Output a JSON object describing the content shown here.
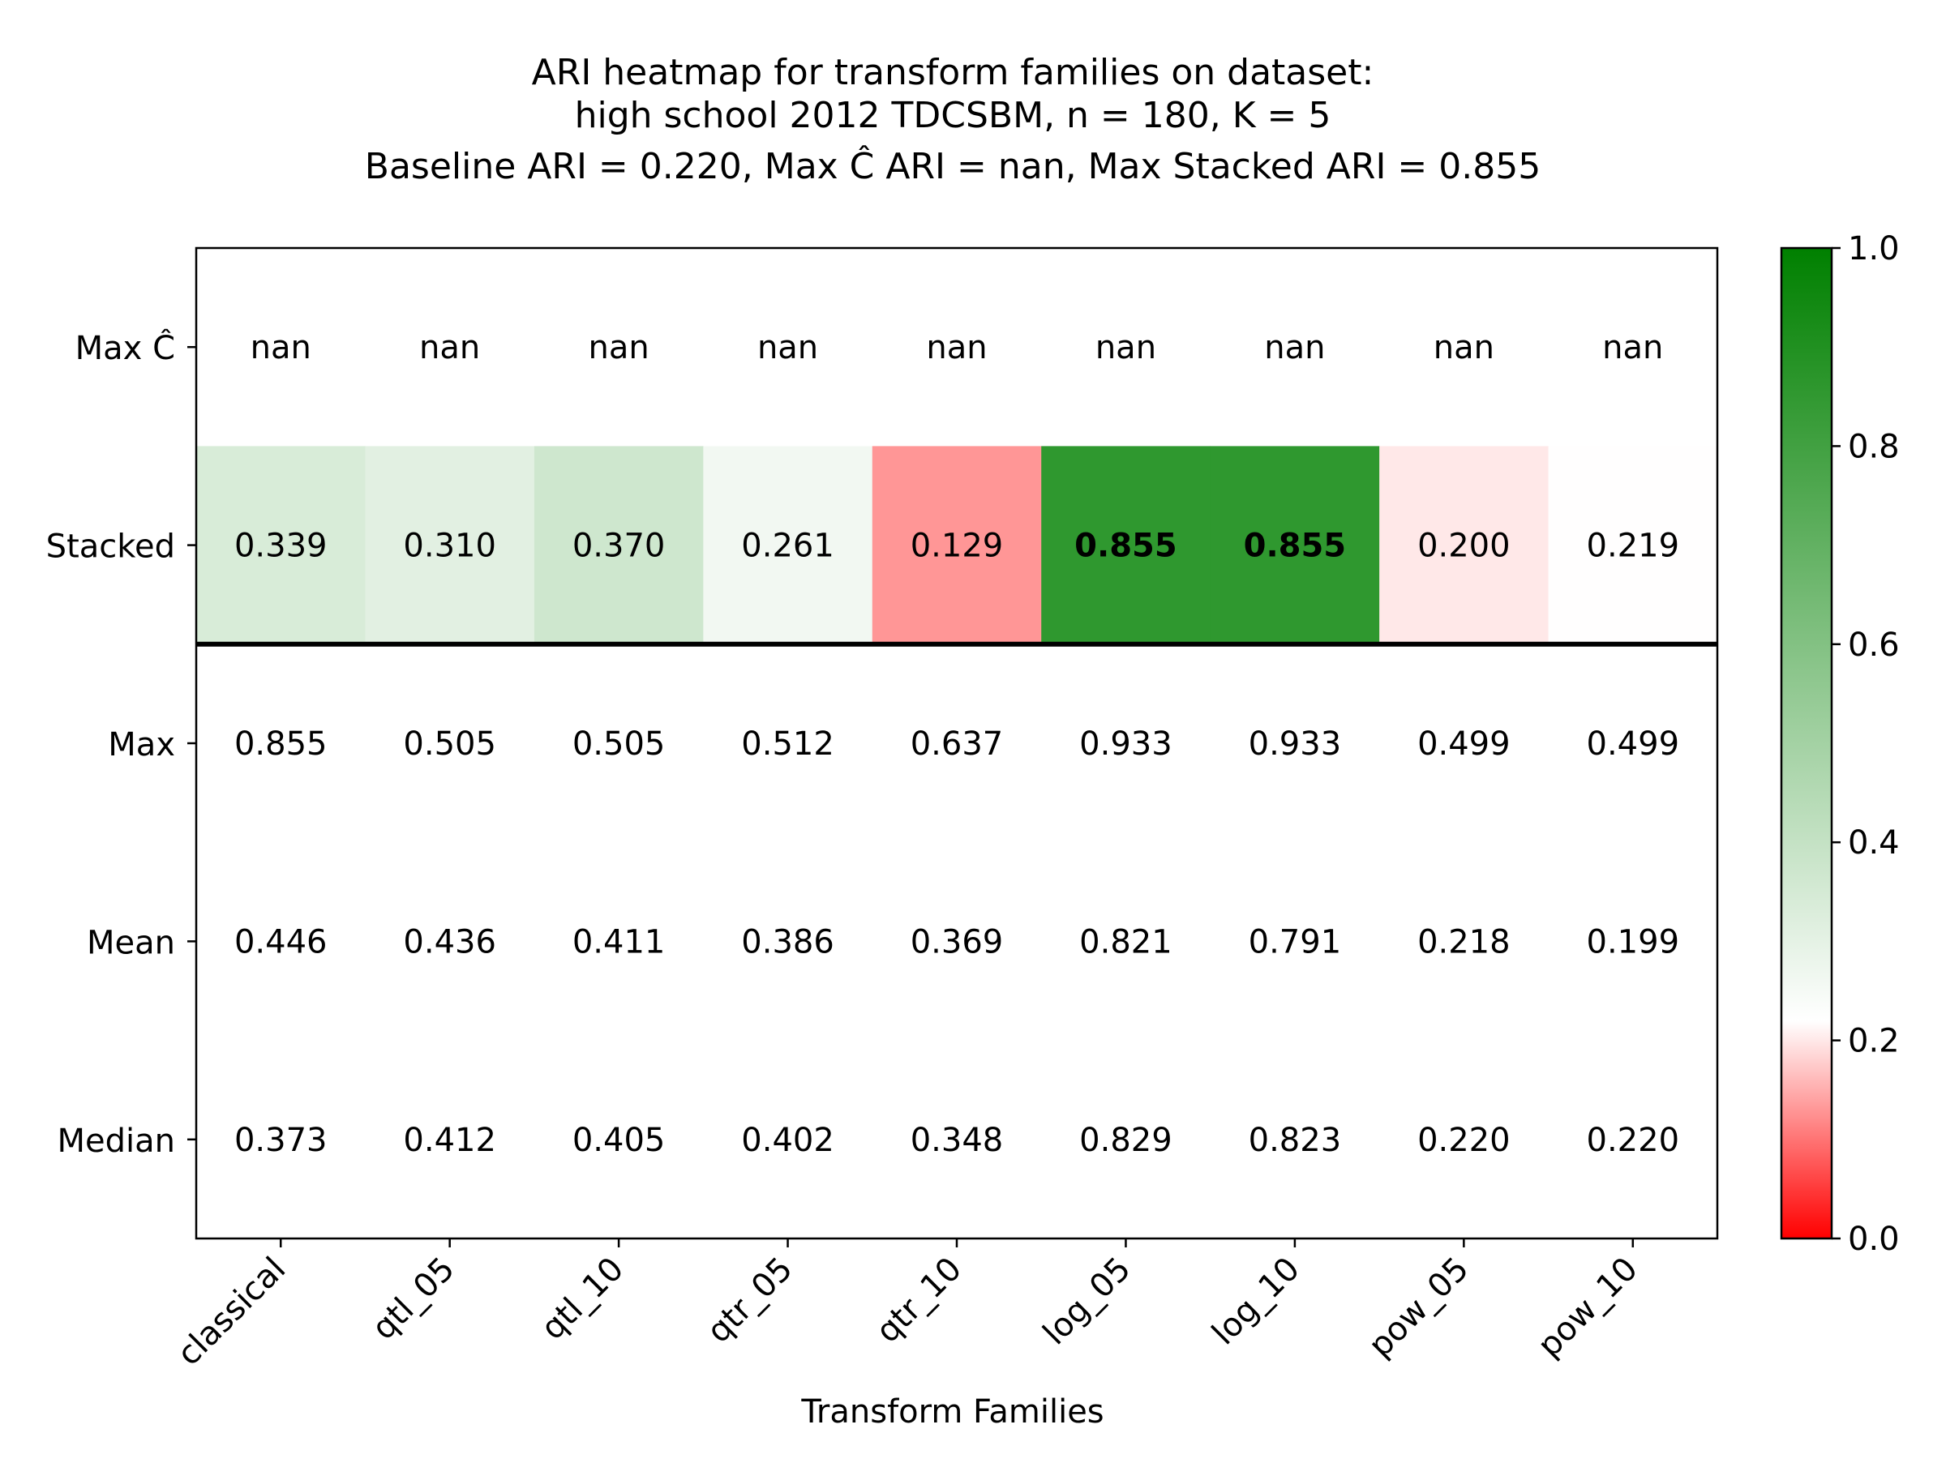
{
  "chart_data": {
    "type": "heatmap",
    "title_lines": [
      "ARI heatmap for transform families on dataset:",
      "high school 2012 TDCSBM, n = 180, K = 5",
      "Baseline ARI = 0.220, Max Ĉ ARI = nan, Max Stacked ARI = 0.855"
    ],
    "xlabel": "Transform Families",
    "ylabel": "",
    "columns": [
      "classical",
      "qtl_05",
      "qtl_10",
      "qtr_05",
      "qtr_10",
      "log_05",
      "log_10",
      "pow_05",
      "pow_10"
    ],
    "rows": [
      "Max Ĉ",
      "Stacked",
      "Max",
      "Mean",
      "Median"
    ],
    "colored_rows": [
      "Stacked"
    ],
    "bold_cells": [
      [
        "Stacked",
        "log_05"
      ],
      [
        "Stacked",
        "log_10"
      ]
    ],
    "separator_below_row": "Stacked",
    "values": [
      [
        null,
        null,
        null,
        null,
        null,
        null,
        null,
        null,
        null
      ],
      [
        0.339,
        0.31,
        0.37,
        0.261,
        0.129,
        0.855,
        0.855,
        0.2,
        0.219
      ],
      [
        0.855,
        0.505,
        0.505,
        0.512,
        0.637,
        0.933,
        0.933,
        0.499,
        0.499
      ],
      [
        0.446,
        0.436,
        0.411,
        0.386,
        0.369,
        0.821,
        0.791,
        0.218,
        0.199
      ],
      [
        0.373,
        0.412,
        0.405,
        0.402,
        0.348,
        0.829,
        0.823,
        0.22,
        0.22
      ]
    ],
    "cell_labels": [
      [
        "nan",
        "nan",
        "nan",
        "nan",
        "nan",
        "nan",
        "nan",
        "nan",
        "nan"
      ],
      [
        "0.339",
        "0.310",
        "0.370",
        "0.261",
        "0.129",
        "0.855",
        "0.855",
        "0.200",
        "0.219"
      ],
      [
        "0.855",
        "0.505",
        "0.505",
        "0.512",
        "0.637",
        "0.933",
        "0.933",
        "0.499",
        "0.499"
      ],
      [
        "0.446",
        "0.436",
        "0.411",
        "0.386",
        "0.369",
        "0.821",
        "0.791",
        "0.218",
        "0.199"
      ],
      [
        "0.373",
        "0.412",
        "0.405",
        "0.402",
        "0.348",
        "0.829",
        "0.823",
        "0.220",
        "0.220"
      ]
    ],
    "colorbar": {
      "range": [
        0,
        1
      ],
      "ticks": [
        0.0,
        0.2,
        0.4,
        0.6,
        0.8,
        1.0
      ],
      "tick_labels": [
        "0.0",
        "0.2",
        "0.4",
        "0.6",
        "0.8",
        "1.0"
      ],
      "center": 0.22,
      "colors": {
        "low": "#ff0000",
        "mid": "#ffffff",
        "high": "#008000"
      }
    },
    "grid": false,
    "legend": "colorbar-right"
  }
}
